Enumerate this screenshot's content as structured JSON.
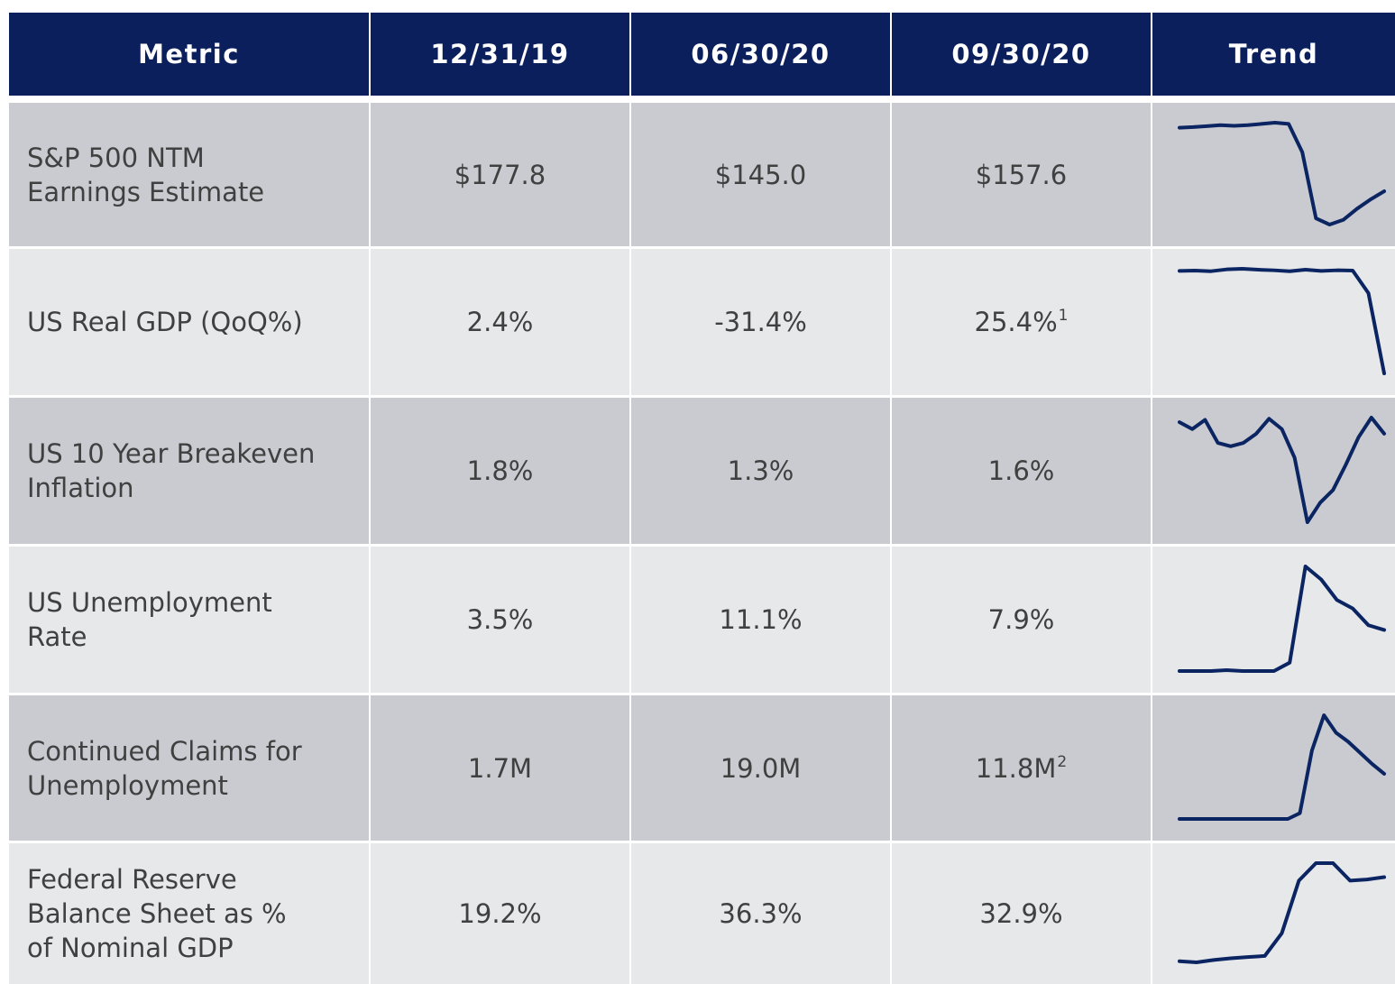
{
  "table": {
    "header": [
      "Metric",
      "12/31/19",
      "06/30/20",
      "09/30/20",
      "Trend"
    ],
    "rows": [
      {
        "metric": [
          "S&P 500 NTM",
          "Earnings Estimate"
        ],
        "cells": [
          "$177.8",
          "$145.0",
          "$157.6"
        ],
        "trend": [
          177.8,
          178,
          178.3,
          178.6,
          178.4,
          178.6,
          179,
          179.4,
          179,
          170,
          149,
          147,
          148.5,
          152,
          155,
          157.6
        ]
      },
      {
        "metric": [
          "US Real GDP (QoQ%)"
        ],
        "cells": [
          "2.4%",
          "-31.4%",
          {
            "text": "25.4%",
            "sup": "1"
          }
        ],
        "trend": [
          2.3,
          2.4,
          2.2,
          2.8,
          3.0,
          2.7,
          2.5,
          2.2,
          2.7,
          2.3,
          2.5,
          2.4,
          -5,
          -31.4
        ]
      },
      {
        "metric": [
          "US 10 Year Breakeven",
          "Inflation"
        ],
        "cells": [
          "1.8%",
          "1.3%",
          "1.6%"
        ],
        "trend": [
          1.87,
          1.81,
          1.89,
          1.69,
          1.66,
          1.69,
          1.77,
          1.9,
          1.81,
          1.56,
          1.0,
          1.17,
          1.28,
          1.5,
          1.74,
          1.91,
          1.77
        ]
      },
      {
        "metric": [
          "US Unemployment",
          "Rate"
        ],
        "cells": [
          "3.5%",
          "11.1%",
          "7.9%"
        ],
        "trend": [
          3.5,
          3.5,
          3.5,
          3.6,
          3.5,
          3.5,
          3.5,
          4.4,
          14.7,
          13.3,
          11.1,
          10.2,
          8.4,
          7.9
        ]
      },
      {
        "metric": [
          "Continued Claims for",
          "Unemployment"
        ],
        "cells": [
          "1.7M",
          "19.0M",
          {
            "text": "11.8M",
            "sup": "2"
          }
        ],
        "trend": [
          1.7,
          1.7,
          1.7,
          1.7,
          1.7,
          1.7,
          1.7,
          1.7,
          1.7,
          1.7,
          3.0,
          17.0,
          24.9,
          21.0,
          19.0,
          16.5,
          14.0,
          11.8
        ]
      },
      {
        "metric": [
          "Federal Reserve",
          "Balance Sheet as %",
          "of Nominal GDP"
        ],
        "cells": [
          "19.2%",
          "36.3%",
          "32.9%"
        ],
        "trend": [
          19.2,
          19.0,
          19.4,
          19.7,
          19.9,
          20.1,
          24,
          33,
          36,
          36,
          33,
          33.2,
          33.6
        ]
      }
    ]
  }
}
